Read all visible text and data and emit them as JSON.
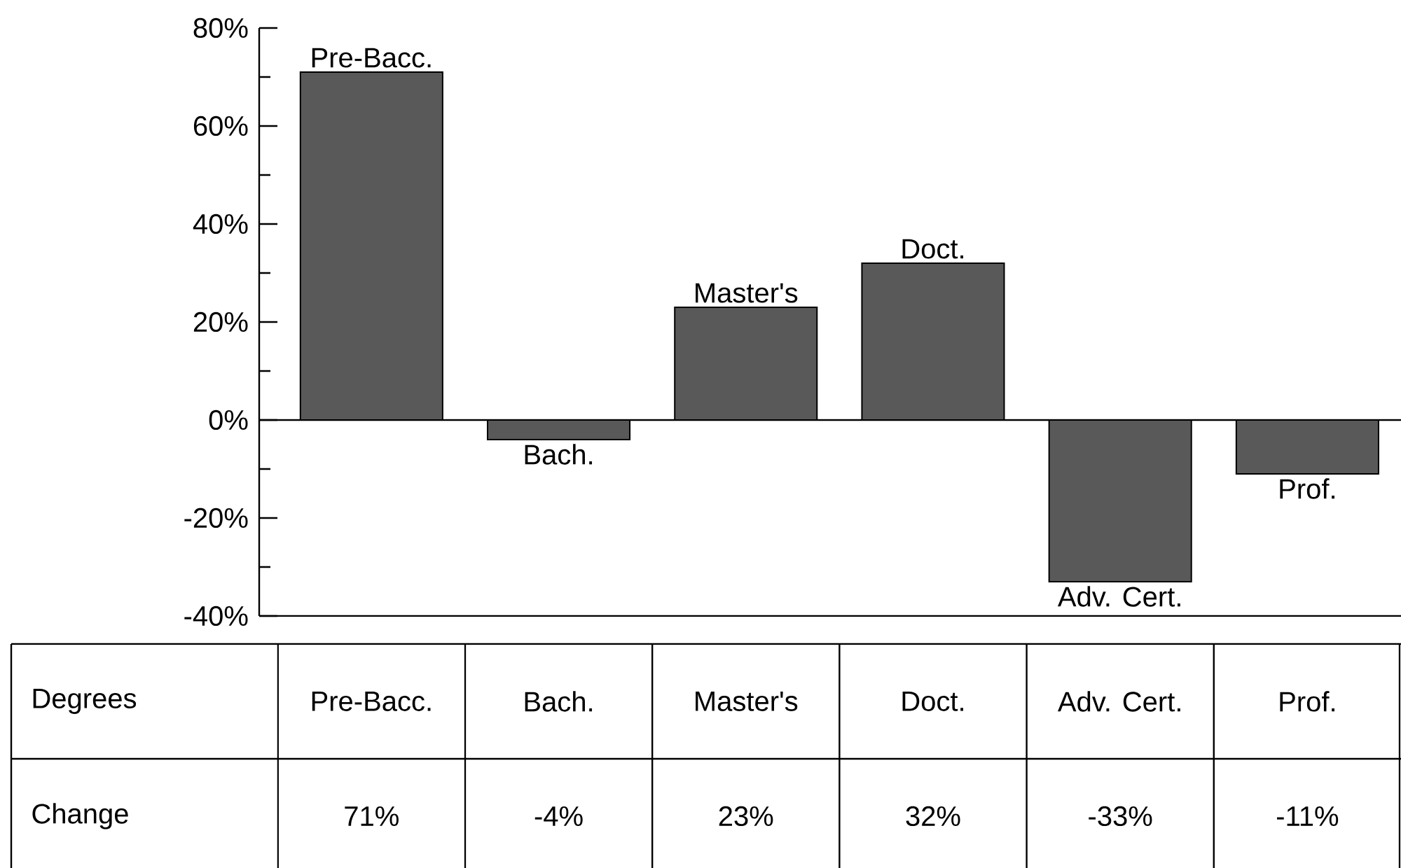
{
  "chart_data": {
    "type": "bar",
    "categories": [
      "Pre-Bacc.",
      "Bach.",
      "Master's",
      "Doct.",
      "Adv. Cert.",
      "Prof."
    ],
    "values": [
      71,
      -4,
      23,
      32,
      -33,
      -11
    ],
    "value_labels": [
      "71%",
      "-4%",
      "23%",
      "32%",
      "-33%",
      "-11%"
    ],
    "color": "#595959",
    "ylim": [
      -40,
      80
    ],
    "yticks": [
      {
        "value": -40,
        "label": "-40%"
      },
      {
        "value": -30,
        "label": null
      },
      {
        "value": -20,
        "label": "-20%"
      },
      {
        "value": -10,
        "label": null
      },
      {
        "value": 0,
        "label": "0%"
      },
      {
        "value": 10,
        "label": null
      },
      {
        "value": 20,
        "label": "20%"
      },
      {
        "value": 30,
        "label": null
      },
      {
        "value": 40,
        "label": "40%"
      },
      {
        "value": 50,
        "label": null
      },
      {
        "value": 60,
        "label": "60%"
      },
      {
        "value": 70,
        "label": null
      },
      {
        "value": 80,
        "label": "80%"
      }
    ],
    "annotations": [
      "Degrees",
      "Change"
    ]
  }
}
